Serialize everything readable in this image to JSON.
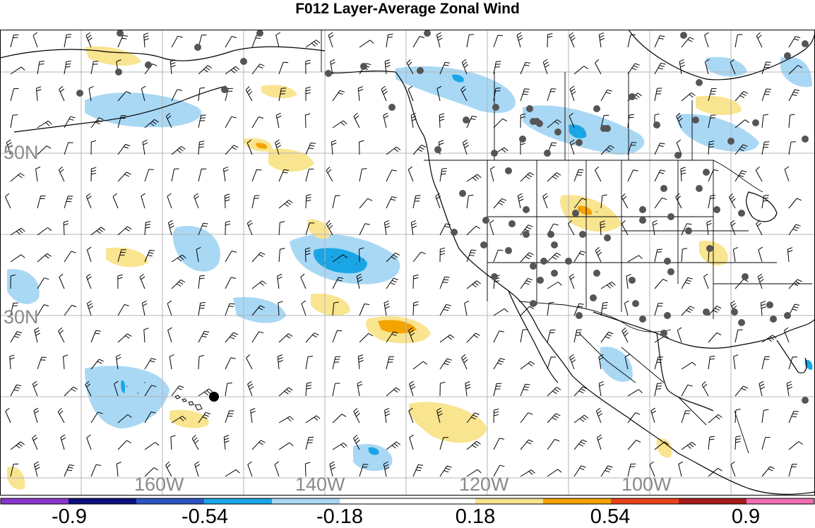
{
  "title": "F012 Layer-Average Zonal Wind",
  "map": {
    "latitude_labels": [
      "50N",
      "30N"
    ],
    "longitude_labels": [
      "160W",
      "140W",
      "120W",
      "100W"
    ],
    "label_color": "#8a8a8a",
    "grid_color": "#b4b4b4",
    "coastline_color": "#000000",
    "station_marker_color": "#555555",
    "highlight_marker_color": "#000000"
  },
  "colorbar": {
    "colors": [
      "#8a35c9",
      "#0b0f7a",
      "#2c55c2",
      "#1aa6e6",
      "#a9d8f5",
      "#ffffff",
      "#ffffff",
      "#f9e48f",
      "#f5a300",
      "#e8421b",
      "#a61c1c",
      "#ee6fb0"
    ],
    "tick_labels": [
      "-0.9",
      "-0.54",
      "-0.18",
      "0.18",
      "0.54",
      "0.9"
    ]
  }
}
